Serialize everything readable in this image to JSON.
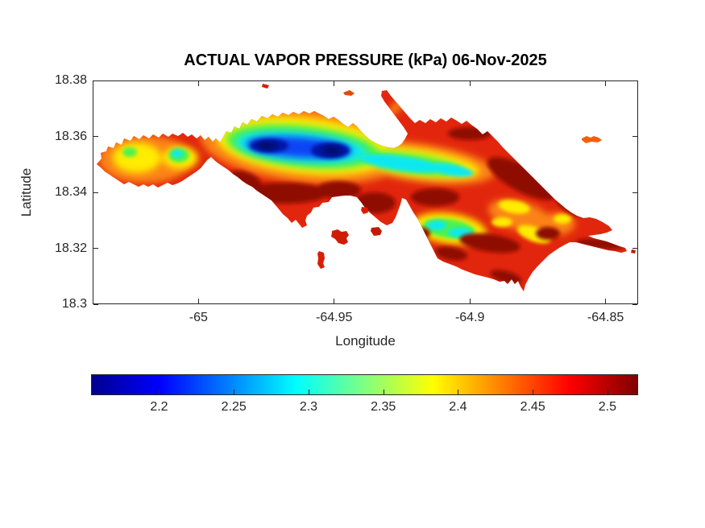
{
  "chart_data": {
    "type": "heatmap",
    "title": "ACTUAL VAPOR PRESSURE (kPa) 06-Nov-2025",
    "variable": "Actual vapor pressure",
    "units": "kPa",
    "date": "06-Nov-2025",
    "xlabel": "Longitude",
    "ylabel": "Latitude",
    "xlim": [
      -65.039,
      -64.838
    ],
    "ylim": [
      18.3,
      18.38
    ],
    "xticks": [
      -65,
      -64.95,
      -64.9,
      -64.85
    ],
    "yticks": [
      18.38,
      18.36,
      18.34,
      18.32,
      18.3
    ],
    "grid": false,
    "colormap": "jet",
    "colorbar": {
      "orientation": "horizontal",
      "position": "below plot",
      "min": 2.155,
      "max": 2.52,
      "ticks": [
        2.2,
        2.25,
        2.3,
        2.35,
        2.4,
        2.45,
        2.5
      ]
    },
    "jet_stops": [
      {
        "color": "#00008F",
        "pos": 0
      },
      {
        "color": "#0000FF",
        "pos": 12.5
      },
      {
        "color": "#00FFFF",
        "pos": 37.5
      },
      {
        "color": "#FFFF00",
        "pos": 62.5
      },
      {
        "color": "#FF0000",
        "pos": 87.5
      },
      {
        "color": "#800000",
        "pos": 100
      }
    ],
    "value_range_kPa": [
      2.155,
      2.52
    ],
    "pattern": "Irregular island landmass plotted over white ocean; lowest vapor pressure (dark blue ~2.16 kPa) along the elevated central ridge, grading through cyan, green, yellow and orange to highest values (dark red ~2.5-2.52 kPa) along the coasts; small offshore cays shown in red/orange.",
    "features": [
      {
        "name": "ridge minimum, west core (dark blue)",
        "lon": -64.974,
        "lat": 18.357,
        "value_kPa": 2.16
      },
      {
        "name": "ridge minimum, east core (dark blue)",
        "lon": -64.951,
        "lat": 18.355,
        "value_kPa": 2.17
      },
      {
        "name": "central ridge cyan band extending east",
        "lon": -64.907,
        "lat": 18.348,
        "value_kPa": 2.29
      },
      {
        "name": "western lobe cool patch (cyan-green)",
        "lon": -65.008,
        "lat": 18.354,
        "value_kPa": 2.31
      },
      {
        "name": "south-central upland patch (cyan)",
        "lon": -64.908,
        "lat": 18.327,
        "value_kPa": 2.3
      },
      {
        "name": "eastern uplands (yellow patches)",
        "lon": -64.876,
        "lat": 18.325,
        "value_kPa": 2.4
      },
      {
        "name": "coastal lowlands (dark red)",
        "lon": -64.93,
        "lat": 18.337,
        "value_kPa": 2.51
      },
      {
        "name": "offshore cay south of harbor",
        "lon": -64.947,
        "lat": 18.324,
        "value_kPa": 2.48
      },
      {
        "name": "islet off northeast coast",
        "lon": -64.854,
        "lat": 18.359,
        "value_kPa": 2.46
      },
      {
        "name": "thin peninsula at north-central bay",
        "lon": -64.895,
        "lat": 18.372,
        "value_kPa": 2.47
      }
    ]
  }
}
